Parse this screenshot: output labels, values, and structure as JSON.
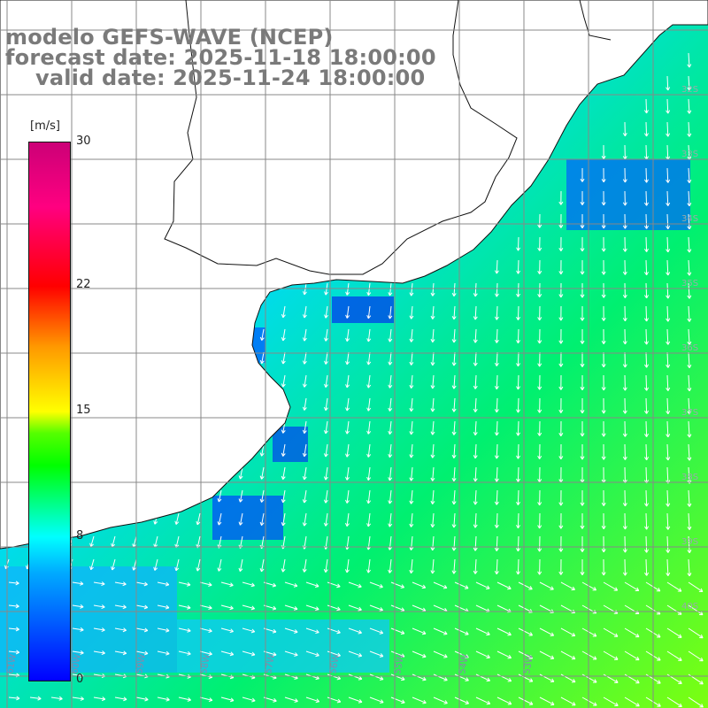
{
  "title": {
    "line1": "modelo GEFS-WAVE (NCEP)",
    "line2": "forecast date: 2025-11-18 18:00:00",
    "line3": "valid date: 2025-11-24 18:00:00"
  },
  "colorbar": {
    "unit": "[m/s]",
    "ticks": [
      "30",
      "22",
      "15",
      "8",
      "0"
    ],
    "tick_values": [
      30,
      22,
      15,
      8,
      0
    ],
    "min": 0,
    "max": 30,
    "colors": {
      "low": "#0000ff",
      "cyan": "#00ffff",
      "green": "#00ff00",
      "yellow": "#ffff00",
      "red": "#ff0000",
      "high": "#cc0077"
    }
  },
  "map": {
    "lat_labels": [
      "32S",
      "33S",
      "34S",
      "35S",
      "36S",
      "37S",
      "38S",
      "39S",
      "40S"
    ],
    "lon_labels": [
      "61W",
      "60W",
      "59W",
      "58W",
      "57W",
      "56W",
      "55W",
      "54W",
      "53W"
    ],
    "land_color": "#ffffff",
    "grid_color": "#888888"
  }
}
